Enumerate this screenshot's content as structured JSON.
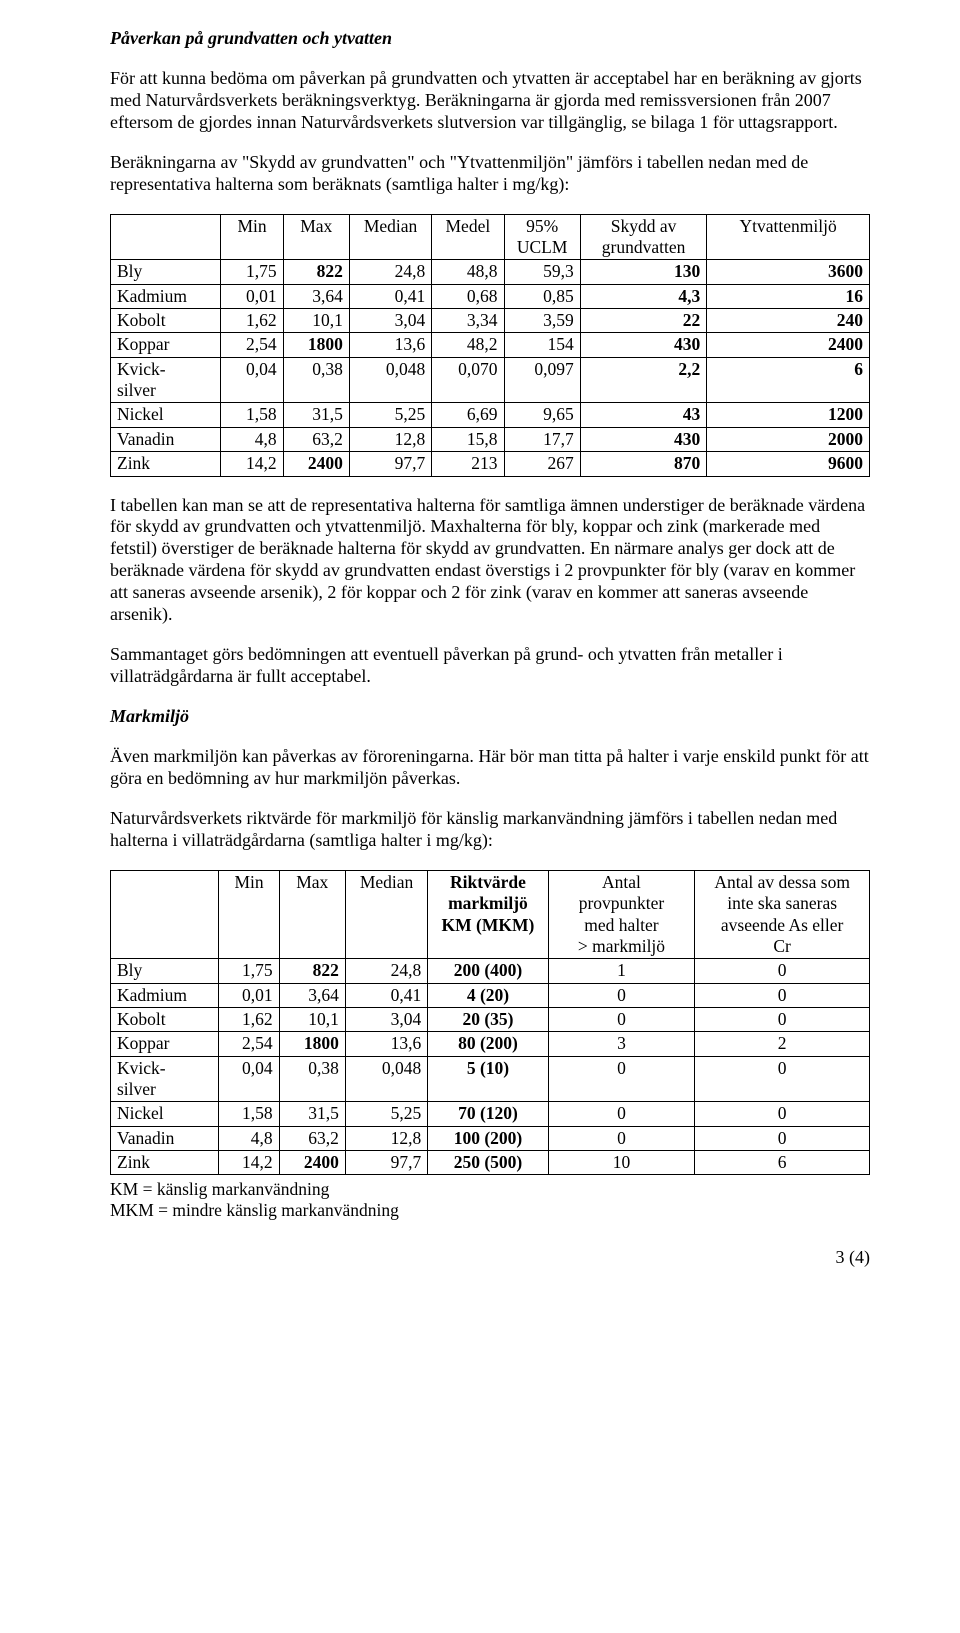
{
  "section1": {
    "title": "Påverkan på grundvatten och ytvatten",
    "p1": "För att kunna bedöma om påverkan på grundvatten och ytvatten är acceptabel har en beräkning av gjorts med Naturvårdsverkets beräkningsverktyg. Beräkningarna är gjorda med remissversionen från 2007 eftersom de gjordes innan Naturvårdsverkets slutversion var tillgänglig, se bilaga 1 för uttagsrapport.",
    "p2": "Beräkningarna av \"Skydd av grundvatten\" och \"Ytvattenmiljön\" jämförs i tabellen nedan med de representativa halterna som beräknats (samtliga halter i mg/kg):"
  },
  "table1": {
    "headers": [
      "",
      "Min",
      "Max",
      "Median",
      "Medel",
      "95% UCLM",
      "Skydd av grundvatten",
      "Ytvattenmiljö"
    ],
    "col_widths": [
      "110px",
      "62px",
      "66px",
      "82px",
      "72px",
      "76px",
      "126px",
      "162px"
    ],
    "rows": [
      {
        "label": "Bly",
        "cells": [
          "1,75",
          {
            "v": "822",
            "b": true
          },
          "24,8",
          "48,8",
          "59,3",
          {
            "v": "130",
            "b": true
          },
          {
            "v": "3600",
            "b": true
          }
        ]
      },
      {
        "label": "Kadmium",
        "cells": [
          "0,01",
          "3,64",
          "0,41",
          "0,68",
          "0,85",
          {
            "v": "4,3",
            "b": true
          },
          {
            "v": "16",
            "b": true
          }
        ]
      },
      {
        "label": "Kobolt",
        "cells": [
          "1,62",
          "10,1",
          "3,04",
          "3,34",
          "3,59",
          {
            "v": "22",
            "b": true
          },
          {
            "v": "240",
            "b": true
          }
        ]
      },
      {
        "label": "Koppar",
        "cells": [
          "2,54",
          {
            "v": "1800",
            "b": true
          },
          "13,6",
          "48,2",
          "154",
          {
            "v": "430",
            "b": true
          },
          {
            "v": "2400",
            "b": true
          }
        ]
      },
      {
        "label": "Kvick-silver",
        "cells": [
          "0,04",
          "0,38",
          "0,048",
          "0,070",
          "0,097",
          {
            "v": "2,2",
            "b": true
          },
          {
            "v": "6",
            "b": true
          }
        ]
      },
      {
        "label": "Nickel",
        "cells": [
          "1,58",
          "31,5",
          "5,25",
          "6,69",
          "9,65",
          {
            "v": "43",
            "b": true
          },
          {
            "v": "1200",
            "b": true
          }
        ]
      },
      {
        "label": "Vanadin",
        "cells": [
          "4,8",
          "63,2",
          "12,8",
          "15,8",
          "17,7",
          {
            "v": "430",
            "b": true
          },
          {
            "v": "2000",
            "b": true
          }
        ]
      },
      {
        "label": "Zink",
        "cells": [
          "14,2",
          {
            "v": "2400",
            "b": true
          },
          "97,7",
          "213",
          "267",
          {
            "v": "870",
            "b": true
          },
          {
            "v": "9600",
            "b": true
          }
        ]
      }
    ]
  },
  "mid": {
    "p1": "I tabellen kan man se att de representativa halterna för samtliga ämnen understiger de beräknade värdena för skydd av grundvatten och ytvattenmiljö. Maxhalterna för bly, koppar och zink (markerade med fetstil) överstiger de beräknade halterna för skydd av grundvatten. En närmare analys ger dock att de beräknade värdena för skydd av grundvatten endast överstigs i 2 provpunkter för bly (varav en kommer att saneras avseende arsenik), 2 för koppar och 2 för zink (varav en kommer att saneras avseende arsenik).",
    "p2": "Sammantaget görs bedömningen att eventuell påverkan på grund- och ytvatten från metaller i villaträdgårdarna är fullt acceptabel."
  },
  "section2": {
    "title": "Markmiljö",
    "p1": "Även markmiljön kan påverkas av föroreningarna. Här bör man titta på halter i varje enskild punkt för att göra en bedömning av hur markmiljön påverkas.",
    "p2": "Naturvårdsverkets riktvärde för markmiljö för känslig markanvändning jämförs i tabellen nedan med halterna i villaträdgårdarna (samtliga halter i mg/kg):"
  },
  "table2": {
    "headers": [
      "",
      "Min",
      "Max",
      "Median",
      "Riktvärde markmiljö KM (MKM)",
      "Antal provpunkter med halter > markmiljö",
      "Antal av dessa som inte ska saneras avseende As eller Cr"
    ],
    "col_widths": [
      "108px",
      "60px",
      "66px",
      "82px",
      "120px",
      "146px",
      "174px"
    ],
    "rows": [
      {
        "label": "Bly",
        "cells": [
          "1,75",
          {
            "v": "822",
            "b": true
          },
          "24,8",
          {
            "v": "200 (400)",
            "b": true
          },
          "1",
          "0"
        ]
      },
      {
        "label": "Kadmium",
        "cells": [
          "0,01",
          "3,64",
          "0,41",
          {
            "v": "4 (20)",
            "b": true
          },
          "0",
          "0"
        ]
      },
      {
        "label": "Kobolt",
        "cells": [
          "1,62",
          "10,1",
          "3,04",
          {
            "v": "20 (35)",
            "b": true
          },
          "0",
          "0"
        ]
      },
      {
        "label": "Koppar",
        "cells": [
          "2,54",
          {
            "v": "1800",
            "b": true
          },
          "13,6",
          {
            "v": "80 (200)",
            "b": true
          },
          "3",
          "2"
        ]
      },
      {
        "label": "Kvick-silver",
        "cells": [
          "0,04",
          "0,38",
          "0,048",
          {
            "v": "5 (10)",
            "b": true
          },
          "0",
          "0"
        ]
      },
      {
        "label": "Nickel",
        "cells": [
          "1,58",
          "31,5",
          "5,25",
          {
            "v": "70 (120)",
            "b": true
          },
          "0",
          "0"
        ]
      },
      {
        "label": "Vanadin",
        "cells": [
          "4,8",
          "63,2",
          "12,8",
          {
            "v": "100 (200)",
            "b": true
          },
          "0",
          "0"
        ]
      },
      {
        "label": "Zink",
        "cells": [
          "14,2",
          {
            "v": "2400",
            "b": true
          },
          "97,7",
          {
            "v": "250 (500)",
            "b": true
          },
          "10",
          "6"
        ]
      }
    ]
  },
  "footnotes": {
    "l1": "KM = känslig markanvändning",
    "l2": "MKM = mindre känslig markanvändning"
  },
  "page_number": "3 (4)"
}
